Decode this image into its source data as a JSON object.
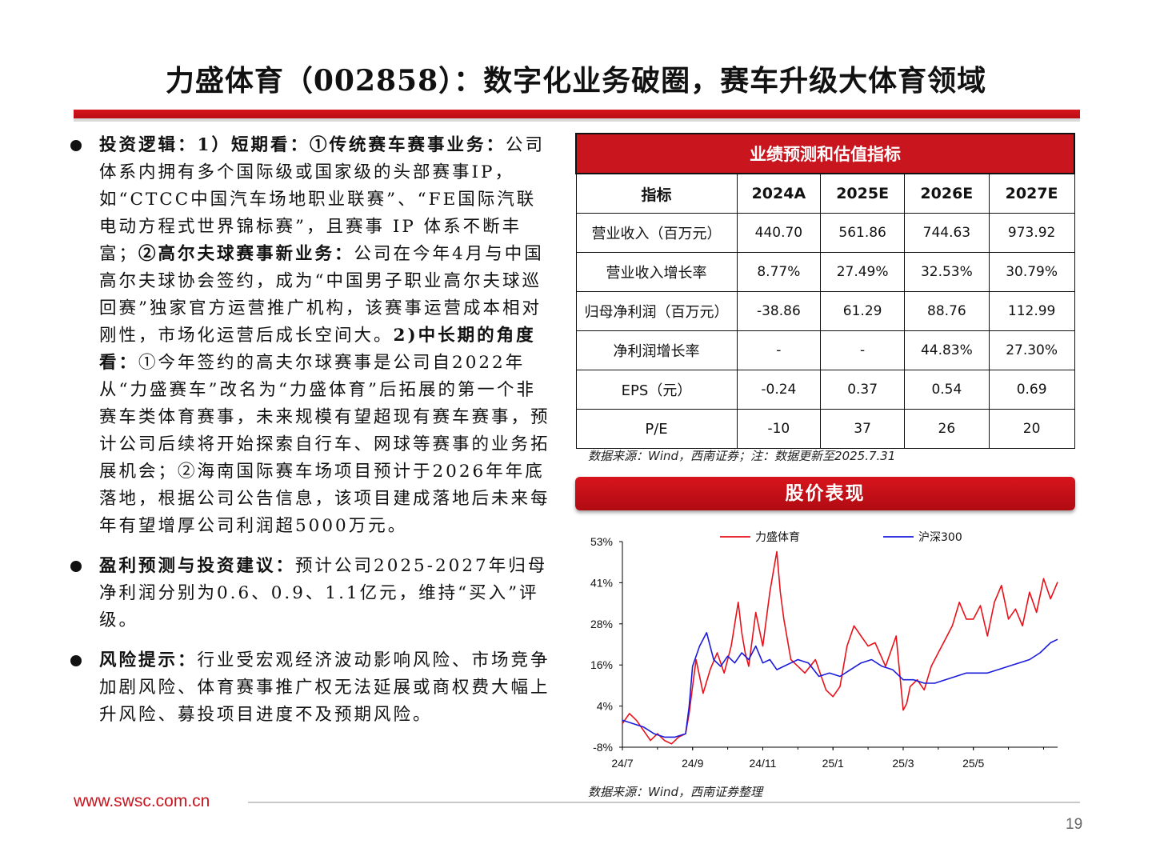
{
  "title": "力盛体育（002858）：数字化业务破圈，赛车升级大体育领域",
  "bullets": [
    {
      "head": "投资逻辑：",
      "runs": [
        {
          "b": true,
          "t": "1）短期看：①传统赛车赛事业务："
        },
        {
          "b": false,
          "t": "公司体系内拥有多个国际级或国家级的头部赛事IP，如“CTCC中国汽车场地职业联赛”、“FE国际汽联电动方程式世界锦标赛”，且赛事 IP 体系不断丰富；"
        },
        {
          "b": true,
          "t": "②高尔夫球赛事新业务："
        },
        {
          "b": false,
          "t": "公司在今年4月与中国高尔夫球协会签约，成为“中国男子职业高尔夫球巡回赛”独家官方运营推广机构，该赛事运营成本相对刚性，市场化运营后成长空间大。"
        },
        {
          "b": true,
          "t": "2)中长期的角度看："
        },
        {
          "b": false,
          "t": "①今年签约的高夫尔球赛事是公司自2022年从“力盛赛车”改名为“力盛体育”后拓展的第一个非赛车类体育赛事，未来规模有望超现有赛车赛事，预计公司后续将开始探索自行车、网球等赛事的业务拓展机会；②海南国际赛车场项目预计于2026年年底落地，根据公司公告信息，该项目建成落地后未来每年有望增厚公司利润超5000万元。"
        }
      ]
    },
    {
      "head": "盈利预测与投资建议：",
      "runs": [
        {
          "b": false,
          "t": "预计公司2025-2027年归母净利润分别为0.6、0.9、1.1亿元，维持“买入”评级。"
        }
      ]
    },
    {
      "head": "风险提示：",
      "runs": [
        {
          "b": false,
          "t": "行业受宏观经济波动影响风险、市场竞争加剧风险、体育赛事推广权无法延展或商权费大幅上升风险、募投项目进度不及预期风险。"
        }
      ]
    }
  ],
  "table": {
    "caption": "业绩预测和估值指标",
    "headers": [
      "指标",
      "2024A",
      "2025E",
      "2026E",
      "2027E"
    ],
    "rows": [
      [
        "营业收入（百万元）",
        "440.70",
        "561.86",
        "744.63",
        "973.92"
      ],
      [
        "营业收入增长率",
        "8.77%",
        "27.49%",
        "32.53%",
        "30.79%"
      ],
      [
        "归母净利润（百万元）",
        "-38.86",
        "61.29",
        "88.76",
        "112.99"
      ],
      [
        "净利润增长率",
        "-",
        "-",
        "44.83%",
        "27.30%"
      ],
      [
        "EPS（元）",
        "-0.24",
        "0.37",
        "0.54",
        "0.69"
      ],
      [
        "P/E",
        "-10",
        "37",
        "26",
        "20"
      ]
    ],
    "source": "数据来源：Wind，西南证券；注：数据更新至2025.7.31"
  },
  "perf_title": "股价表现",
  "chart_source": "数据来源：Wind，西南证券整理",
  "footer_url": "www.swsc.com.cn",
  "page_number": "19",
  "colors": {
    "accent": "#c9151e",
    "series1": "#e8111a",
    "series2": "#1a1adb"
  },
  "chart_data": {
    "type": "line",
    "title": "",
    "xlabel": "",
    "ylabel": "",
    "y_ticks": [
      "53%",
      "41%",
      "28%",
      "16%",
      "4%",
      "-8%"
    ],
    "ylim": [
      -8,
      53
    ],
    "x_ticks": [
      "24/7",
      "24/9",
      "24/11",
      "25/1",
      "25/3",
      "25/5"
    ],
    "x_tick_positions": [
      0,
      2,
      4,
      6,
      8,
      10
    ],
    "xlim": [
      0,
      12.4
    ],
    "legend_position": "top",
    "series": [
      {
        "name": "力盛体育",
        "x": [
          0,
          0.2,
          0.4,
          0.6,
          0.8,
          1.0,
          1.2,
          1.4,
          1.6,
          1.8,
          1.9,
          2.0,
          2.1,
          2.3,
          2.5,
          2.7,
          2.9,
          3.1,
          3.3,
          3.4,
          3.5,
          3.6,
          3.8,
          4.0,
          4.2,
          4.3,
          4.4,
          4.5,
          4.6,
          4.8,
          5.0,
          5.2,
          5.5,
          5.8,
          6.0,
          6.2,
          6.4,
          6.6,
          6.8,
          7.0,
          7.2,
          7.5,
          7.8,
          8.0,
          8.1,
          8.2,
          8.4,
          8.6,
          8.8,
          9.0,
          9.2,
          9.4,
          9.6,
          9.8,
          10.0,
          10.2,
          10.4,
          10.6,
          10.8,
          11.0,
          11.2,
          11.4,
          11.6,
          11.8,
          12.0,
          12.2,
          12.4
        ],
        "values": [
          -1,
          2,
          0,
          -3,
          -6,
          -4,
          -6,
          -7,
          -5,
          -4,
          2,
          10,
          18,
          8,
          15,
          20,
          14,
          22,
          35,
          26,
          20,
          16,
          32,
          22,
          38,
          44,
          50,
          38,
          30,
          18,
          16,
          14,
          18,
          9,
          7,
          10,
          22,
          28,
          25,
          22,
          23,
          16,
          25,
          3,
          5,
          10,
          12,
          9,
          16,
          20,
          24,
          28,
          35,
          30,
          30,
          34,
          25,
          35,
          40,
          30,
          33,
          28,
          38,
          32,
          42,
          36,
          41
        ]
      },
      {
        "name": "沪深300",
        "x": [
          0,
          0.3,
          0.6,
          0.9,
          1.2,
          1.5,
          1.8,
          1.9,
          2.0,
          2.2,
          2.4,
          2.6,
          2.8,
          3.0,
          3.2,
          3.4,
          3.6,
          3.8,
          4.0,
          4.2,
          4.4,
          4.6,
          4.8,
          5.0,
          5.3,
          5.6,
          5.9,
          6.2,
          6.5,
          6.8,
          7.1,
          7.4,
          7.7,
          8.0,
          8.3,
          8.6,
          8.9,
          9.2,
          9.5,
          9.8,
          10.1,
          10.4,
          10.7,
          11.0,
          11.3,
          11.6,
          11.9,
          12.2,
          12.4
        ],
        "values": [
          0,
          -1,
          -2,
          -4,
          -5,
          -5,
          -4,
          4,
          16,
          22,
          26,
          18,
          16,
          19,
          17,
          20,
          18,
          22,
          17,
          18,
          15,
          16,
          17,
          18,
          17,
          13,
          14,
          13,
          15,
          17,
          18,
          16,
          15,
          12,
          12,
          11,
          11,
          12,
          13,
          14,
          14,
          14,
          15,
          16,
          17,
          18,
          20,
          23,
          24
        ]
      }
    ]
  }
}
